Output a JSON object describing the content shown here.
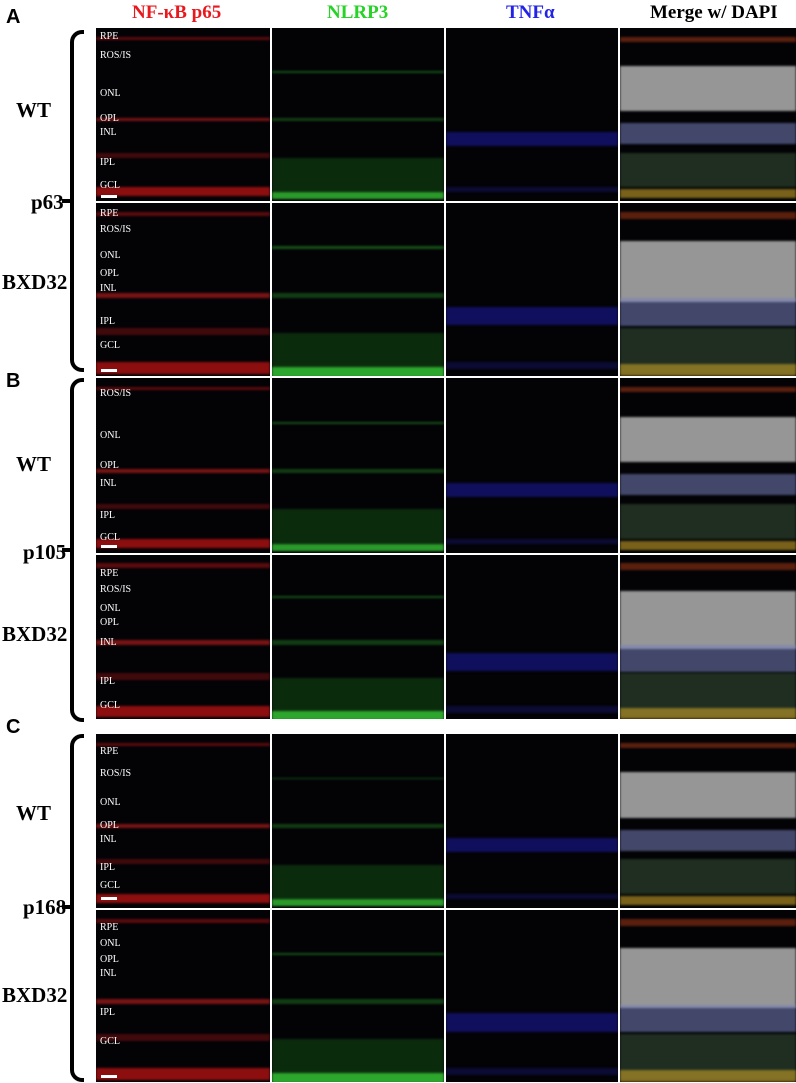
{
  "columns": [
    {
      "label": "NF-κB p65",
      "color": "#e8191e"
    },
    {
      "label": "NLRP3",
      "color": "#26d326"
    },
    {
      "label": "TNFα",
      "color": "#2323e6"
    },
    {
      "label": "Merge w/ DAPI",
      "color": "#000000"
    }
  ],
  "panels": [
    {
      "letter": "A",
      "age": "p63",
      "rows": [
        {
          "strain": "WT",
          "layers": [
            "RPE",
            "ROS/IS",
            "ONL",
            "OPL",
            "INL",
            "IPL",
            "GCL"
          ]
        },
        {
          "strain": "BXD32",
          "layers": [
            "RPE",
            "ROS/IS",
            "ONL",
            "OPL",
            "INL",
            "IPL",
            "GCL"
          ]
        }
      ]
    },
    {
      "letter": "B",
      "age": "p105",
      "rows": [
        {
          "strain": "WT",
          "layers": [
            "ROS/IS",
            "ONL",
            "OPL",
            "INL",
            "IPL",
            "GCL"
          ]
        },
        {
          "strain": "BXD32",
          "layers": [
            "RPE",
            "ROS/IS",
            "ONL",
            "OPL",
            "INL",
            "IPL",
            "GCL"
          ]
        }
      ]
    },
    {
      "letter": "C",
      "age": "p168",
      "rows": [
        {
          "strain": "WT",
          "layers": [
            "RPE",
            "ROS/IS",
            "ONL",
            "OPL",
            "INL",
            "IPL",
            "GCL"
          ]
        },
        {
          "strain": "BXD32",
          "layers": [
            "RPE",
            "ONL",
            "OPL",
            "INL",
            "IPL",
            "GCL"
          ]
        }
      ]
    }
  ]
}
